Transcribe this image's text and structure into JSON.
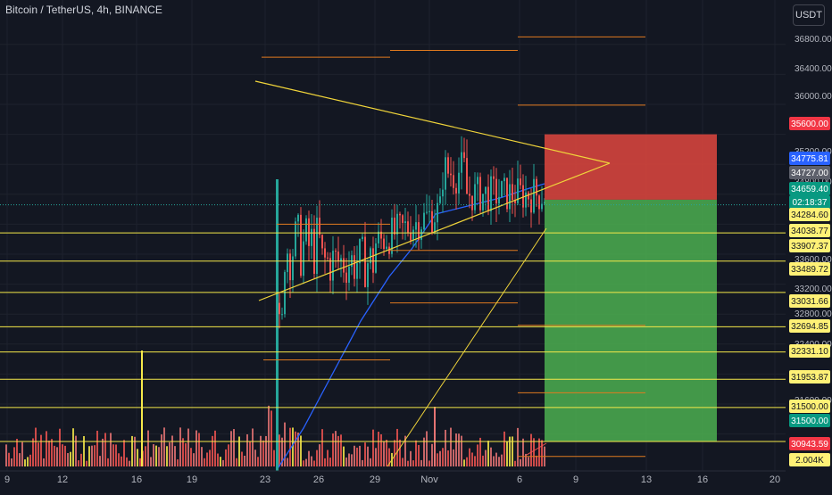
{
  "header": {
    "title": "Bitcoin / TetherUS, 4h, BINANCE",
    "currency_button": "USDT"
  },
  "colors": {
    "background": "#131722",
    "grid": "#1e222d",
    "up": "#26a69a",
    "down": "#ef5350",
    "trendline": "#f0d43a",
    "level_line": "#f5e84a",
    "ma_line": "#2962ff",
    "stop_zone": "#e0473e",
    "target_zone": "#4caf50",
    "orange_level": "#e07a1f"
  },
  "chart_data": {
    "type": "candlestick",
    "title": "Bitcoin / TetherUS, 4h, BINANCE",
    "y_axis": {
      "ticks": [
        31500,
        31600,
        32000,
        32400,
        32800,
        33200,
        33600,
        34000,
        34400,
        34800,
        35200,
        35600,
        36000,
        36400,
        36800
      ],
      "visible_tick_labels": [
        "36800.00",
        "36400.00",
        "36000.00",
        "35200.00",
        "34800.00",
        "33600.00",
        "33200.00",
        "32800.00",
        "31600.00",
        "32400.00"
      ],
      "range": [
        30700,
        37200
      ]
    },
    "x_axis": {
      "tick_labels": [
        "9",
        "12",
        "16",
        "19",
        "23",
        "26",
        "29",
        "Nov",
        "6",
        "9",
        "13",
        "16",
        "20"
      ]
    },
    "price_labels": [
      {
        "text": "35600.00",
        "value": 35600,
        "style": "red"
      },
      {
        "text": "34775.81",
        "value": 34775.81,
        "style": "blue"
      },
      {
        "text": "34727.00",
        "value": 34727,
        "style": "grey"
      },
      {
        "text": "34659.40",
        "value": 34659.4,
        "style": "green"
      },
      {
        "text": "02:18:37",
        "value": null,
        "style": "green"
      },
      {
        "text": "34284.60",
        "value": 34284.6,
        "style": "yellow"
      },
      {
        "text": "34038.77",
        "value": 34038.77,
        "style": "yellow"
      },
      {
        "text": "33907.37",
        "value": 33907.37,
        "style": "yellow"
      },
      {
        "text": "33489.72",
        "value": 33489.72,
        "style": "yellow"
      },
      {
        "text": "33031.66",
        "value": 33031.66,
        "style": "yellow"
      },
      {
        "text": "32694.85",
        "value": 32694.85,
        "style": "yellow"
      },
      {
        "text": "32331.10",
        "value": 32331.1,
        "style": "yellow"
      },
      {
        "text": "31953.87",
        "value": 31953.87,
        "style": "yellow"
      },
      {
        "text": "31500.00",
        "value": 31500,
        "style": "yellow"
      },
      {
        "text": "31500.00",
        "value": 31500,
        "style": "green"
      },
      {
        "text": "30943.59",
        "value": 30943.59,
        "style": "red"
      },
      {
        "text": "2.004K",
        "value": null,
        "style": "yellow"
      }
    ],
    "horizontal_levels": [
      34284.6,
      33907.37,
      33489.72,
      33031.66,
      32694.85,
      32331.1,
      31953.87,
      31500
    ],
    "trade_box": {
      "stop": 35600,
      "entry": 34727,
      "target": 31500
    },
    "grid": true,
    "legend": "none"
  }
}
